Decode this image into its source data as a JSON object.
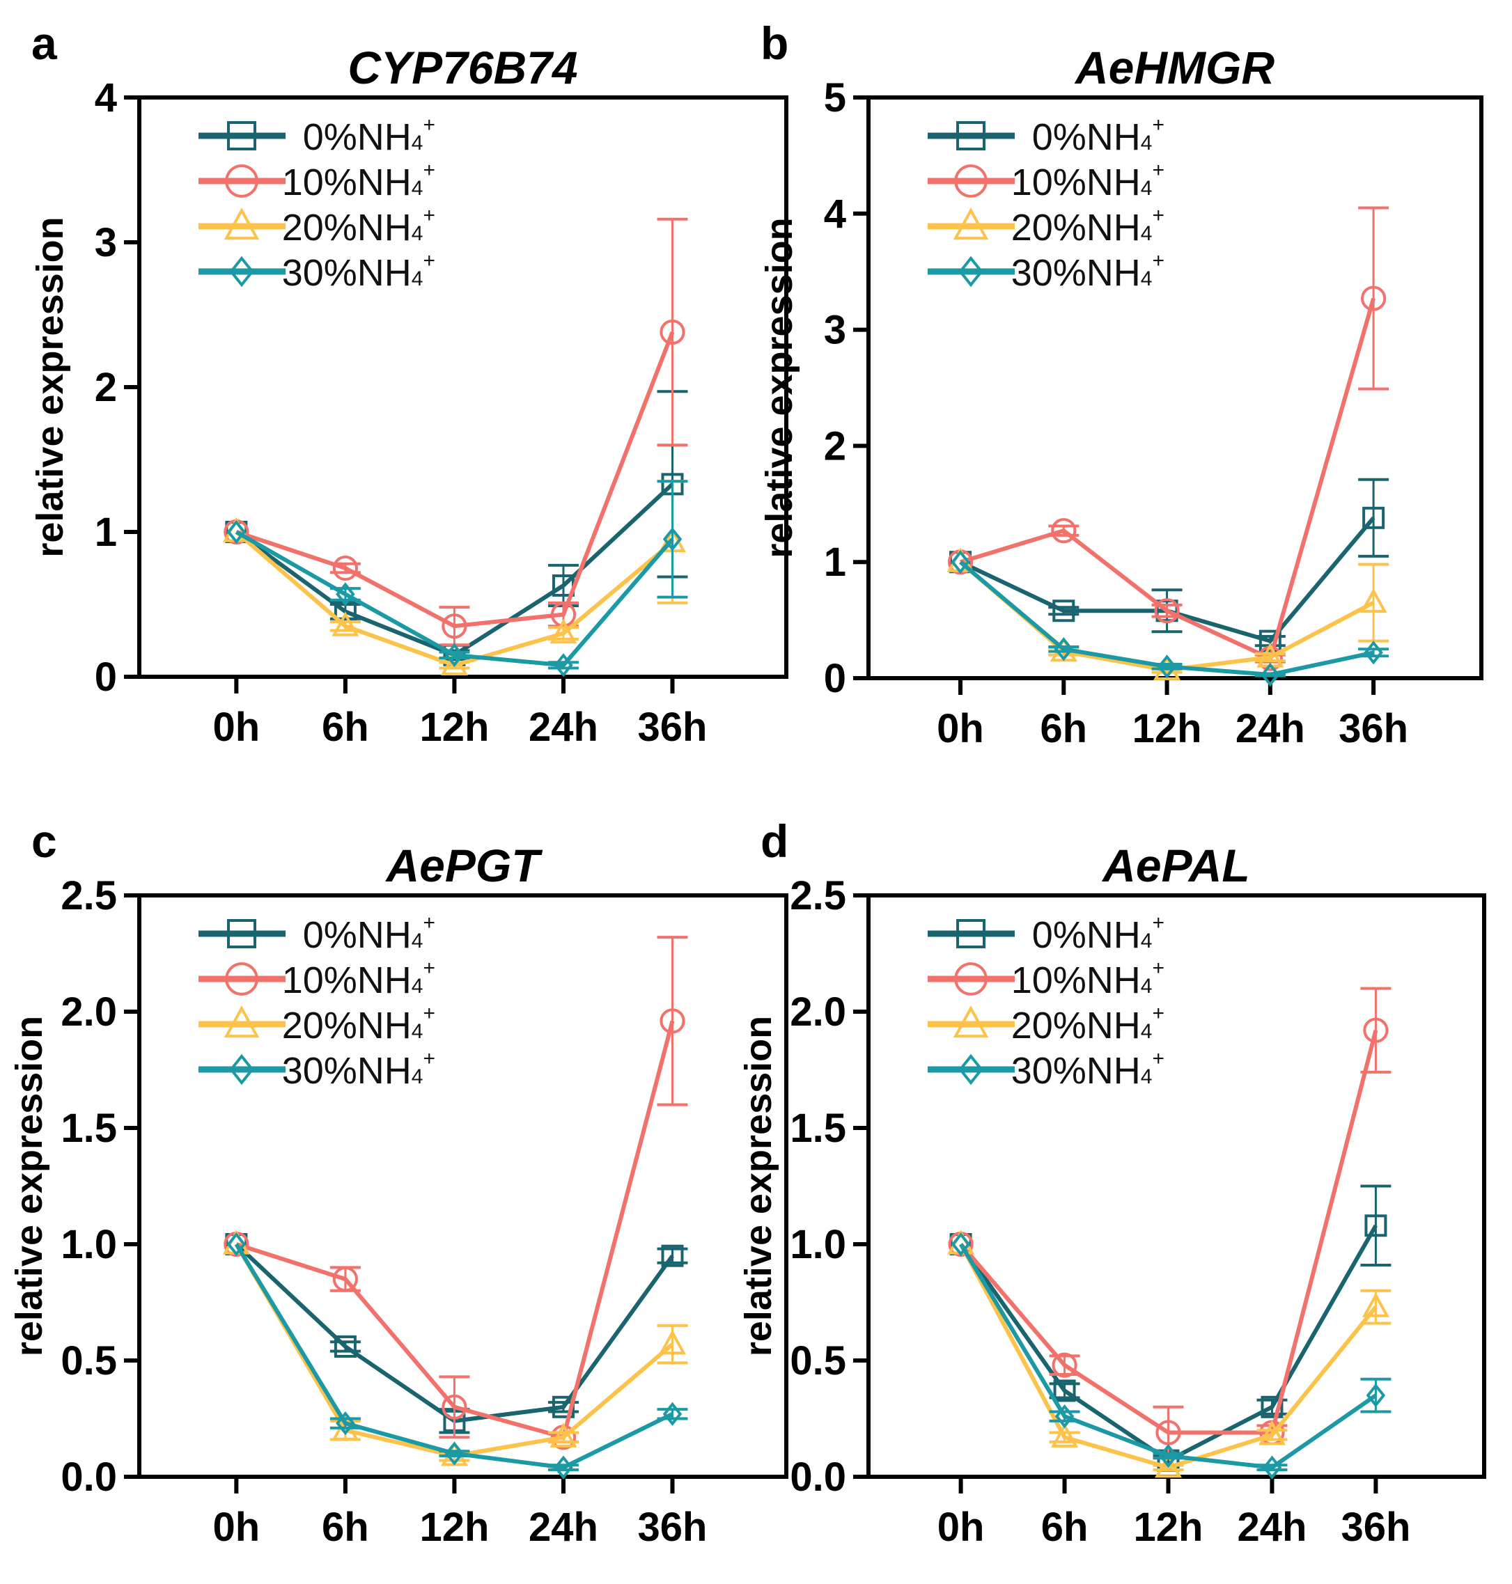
{
  "series_colors": {
    "0%NH4+": "#1a6470",
    "10%NH4+": "#f2716b",
    "20%NH4+": "#fcc24a",
    "30%NH4+": "#1b9aa6"
  },
  "chart_data": [
    {
      "panel_letter": "a",
      "title": "CYP76B74",
      "type": "line",
      "ylabel": "relative expression",
      "ylim": [
        0,
        4
      ],
      "yticks": [
        "0",
        "1",
        "2",
        "3",
        "4"
      ],
      "ytick_values": [
        0,
        1,
        2,
        3,
        4
      ],
      "categories": [
        "0h",
        "6h",
        "12h",
        "24h",
        "36h"
      ],
      "legend": "top-left",
      "series": [
        {
          "name": "0%NH4+",
          "marker": "square",
          "values": [
            1,
            0.45,
            0.15,
            0.63,
            1.33
          ],
          "errors": [
            0,
            0.05,
            0.03,
            0.14,
            0.64
          ]
        },
        {
          "name": "10%NH4+",
          "marker": "circle",
          "values": [
            1,
            0.75,
            0.35,
            0.43,
            2.38
          ],
          "errors": [
            0,
            0.03,
            0.13,
            0.08,
            0.78
          ]
        },
        {
          "name": "20%NH4+",
          "marker": "triangle",
          "values": [
            1,
            0.35,
            0.08,
            0.3,
            0.93
          ],
          "errors": [
            0,
            0.03,
            0.02,
            0.04,
            0.42
          ]
        },
        {
          "name": "30%NH4+",
          "marker": "diamond",
          "values": [
            1,
            0.57,
            0.15,
            0.08,
            0.95
          ],
          "errors": [
            0,
            0.04,
            0.02,
            0.02,
            0.4
          ]
        }
      ]
    },
    {
      "panel_letter": "b",
      "title": "AeHMGR",
      "type": "line",
      "ylabel": "relative expression",
      "ylim": [
        0,
        5
      ],
      "yticks": [
        "0",
        "1",
        "2",
        "3",
        "4",
        "5"
      ],
      "ytick_values": [
        0,
        1,
        2,
        3,
        4,
        5
      ],
      "categories": [
        "0h",
        "6h",
        "12h",
        "24h",
        "36h"
      ],
      "legend": "top-left",
      "series": [
        {
          "name": "0%NH4+",
          "marker": "square",
          "values": [
            1,
            0.58,
            0.58,
            0.32,
            1.38
          ],
          "errors": [
            0,
            0.03,
            0.18,
            0.04,
            0.33
          ]
        },
        {
          "name": "10%NH4+",
          "marker": "circle",
          "values": [
            1,
            1.27,
            0.58,
            0.17,
            3.27
          ],
          "errors": [
            0,
            0.04,
            0.05,
            0.03,
            0.78
          ]
        },
        {
          "name": "20%NH4+",
          "marker": "triangle",
          "values": [
            1,
            0.23,
            0.07,
            0.18,
            0.65
          ],
          "errors": [
            0,
            0.03,
            0.02,
            0.03,
            0.33
          ]
        },
        {
          "name": "30%NH4+",
          "marker": "diamond",
          "values": [
            1,
            0.25,
            0.1,
            0.03,
            0.22
          ],
          "errors": [
            0,
            0.02,
            0.02,
            0.01,
            0.03
          ]
        }
      ]
    },
    {
      "panel_letter": "c",
      "title": "AePGT",
      "type": "line",
      "ylabel": "relative expression",
      "ylim": [
        0,
        2.5
      ],
      "yticks": [
        "0.0",
        "0.5",
        "1.0",
        "1.5",
        "2.0",
        "2.5"
      ],
      "ytick_values": [
        0,
        0.5,
        1,
        1.5,
        2,
        2.5
      ],
      "categories": [
        "0h",
        "6h",
        "12h",
        "24h",
        "36h"
      ],
      "legend": "top-left",
      "series": [
        {
          "name": "0%NH4+",
          "marker": "square",
          "values": [
            1,
            0.56,
            0.24,
            0.3,
            0.95
          ],
          "errors": [
            0,
            0.02,
            0.05,
            0.02,
            0.03
          ]
        },
        {
          "name": "10%NH4+",
          "marker": "circle",
          "values": [
            1,
            0.85,
            0.3,
            0.17,
            1.96
          ],
          "errors": [
            0,
            0.05,
            0.13,
            0.02,
            0.36
          ]
        },
        {
          "name": "20%NH4+",
          "marker": "triangle",
          "values": [
            1,
            0.2,
            0.09,
            0.17,
            0.57
          ],
          "errors": [
            0,
            0.04,
            0.02,
            0.02,
            0.08
          ]
        },
        {
          "name": "30%NH4+",
          "marker": "diamond",
          "values": [
            1,
            0.23,
            0.1,
            0.04,
            0.27
          ],
          "errors": [
            0,
            0.02,
            0.01,
            0.01,
            0.02
          ]
        }
      ]
    },
    {
      "panel_letter": "d",
      "title": "AePAL",
      "type": "line",
      "ylabel": "relative expression",
      "ylim": [
        0,
        2.5
      ],
      "yticks": [
        "0.0",
        "0.5",
        "1.0",
        "1.5",
        "2.0",
        "2.5"
      ],
      "ytick_values": [
        0,
        0.5,
        1,
        1.5,
        2,
        2.5
      ],
      "categories": [
        "0h",
        "6h",
        "12h",
        "24h",
        "36h"
      ],
      "legend": "top-left",
      "series": [
        {
          "name": "0%NH4+",
          "marker": "square",
          "values": [
            1,
            0.37,
            0.07,
            0.3,
            1.08
          ],
          "errors": [
            0,
            0.03,
            0.02,
            0.03,
            0.17
          ]
        },
        {
          "name": "10%NH4+",
          "marker": "circle",
          "values": [
            1,
            0.48,
            0.19,
            0.19,
            1.92
          ],
          "errors": [
            0,
            0.04,
            0.11,
            0.03,
            0.18
          ]
        },
        {
          "name": "20%NH4+",
          "marker": "triangle",
          "values": [
            1,
            0.17,
            0.04,
            0.18,
            0.73
          ],
          "errors": [
            0,
            0.02,
            0.01,
            0.02,
            0.07
          ]
        },
        {
          "name": "30%NH4+",
          "marker": "diamond",
          "values": [
            1,
            0.26,
            0.09,
            0.04,
            0.35
          ],
          "errors": [
            0,
            0.02,
            0.01,
            0.01,
            0.07
          ]
        }
      ]
    }
  ]
}
